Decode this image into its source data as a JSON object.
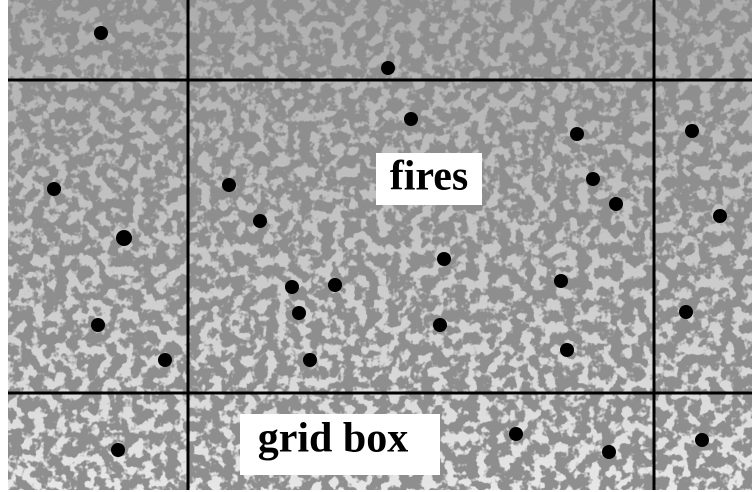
{
  "labels": {
    "fires": "fires",
    "grid_box": "grid box"
  }
}
